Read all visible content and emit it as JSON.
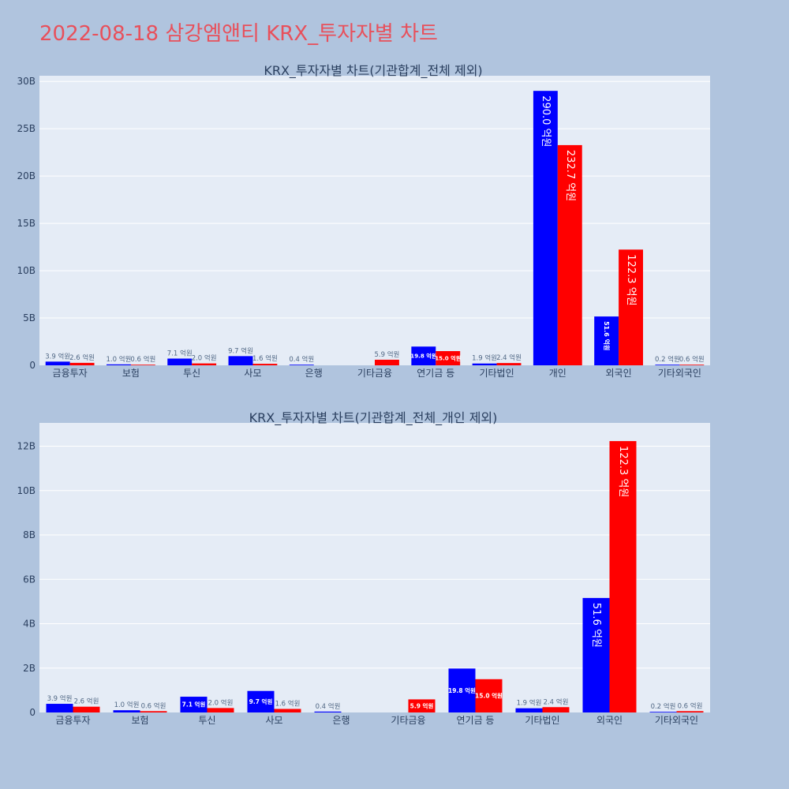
{
  "page": {
    "title": "2022-08-18 삼강엠앤티 KRX_투자자별 차트",
    "title_color": "#e8505b",
    "background": "#b0c4de",
    "plot_background": "#e5ecf6"
  },
  "chart_data": [
    {
      "type": "bar",
      "title": "KRX_투자자별 차트(기관합계_전체 제외)",
      "categories": [
        "금융투자",
        "보험",
        "투신",
        "사모",
        "은행",
        "기타금융",
        "연기금 등",
        "기타법인",
        "개인",
        "외국인",
        "기타외국인"
      ],
      "ylim": [
        0,
        30.6
      ],
      "yticks": [
        0,
        5,
        10,
        15,
        20,
        25,
        30
      ],
      "ytick_labels": [
        "0",
        "5B",
        "10B",
        "15B",
        "20B",
        "25B",
        "30B"
      ],
      "grid": true,
      "series": [
        {
          "color": "#0000ff",
          "values": [
            0.39,
            0.1,
            0.71,
            0.97,
            0.04,
            null,
            1.98,
            0.19,
            29.0,
            5.16,
            0.02
          ],
          "labels": [
            "3.9 억원",
            "1.0 억원",
            "7.1 억원",
            "9.7 억원",
            "0.4 억원",
            "",
            "19.8 억원",
            "1.9 억원",
            "290.0 억원",
            "51.6 억원",
            "0.2 억원"
          ]
        },
        {
          "color": "#ff0000",
          "values": [
            0.26,
            0.06,
            0.2,
            0.16,
            null,
            0.59,
            1.5,
            0.24,
            23.27,
            12.23,
            0.06
          ],
          "labels": [
            "2.6 억원",
            "0.6 억원",
            "2.0 억원",
            "1.6 억원",
            "",
            "5.9 억원",
            "15.0 억원",
            "2.4 억원",
            "232.7 억원",
            "122.3 억원",
            "0.6 억원"
          ]
        }
      ]
    },
    {
      "type": "bar",
      "title": "KRX_투자자별 차트(기관합계_전체_개인 제외)",
      "categories": [
        "금융투자",
        "보험",
        "투신",
        "사모",
        "은행",
        "기타금융",
        "연기금 등",
        "기타법인",
        "외국인",
        "기타외국인"
      ],
      "ylim": [
        0,
        13.05
      ],
      "yticks": [
        0,
        2,
        4,
        6,
        8,
        10,
        12
      ],
      "ytick_labels": [
        "0",
        "2B",
        "4B",
        "6B",
        "8B",
        "10B",
        "12B"
      ],
      "grid": true,
      "series": [
        {
          "color": "#0000ff",
          "values": [
            0.39,
            0.1,
            0.71,
            0.97,
            0.04,
            null,
            1.98,
            0.19,
            5.16,
            0.02
          ],
          "labels": [
            "3.9 억원",
            "1.0 억원",
            "7.1 억원",
            "9.7 억원",
            "0.4 억원",
            "",
            "19.8 억원",
            "1.9 억원",
            "51.6 억원",
            "0.2 억원"
          ]
        },
        {
          "color": "#ff0000",
          "values": [
            0.26,
            0.06,
            0.2,
            0.16,
            null,
            0.59,
            1.5,
            0.24,
            12.23,
            0.06
          ],
          "labels": [
            "2.6 억원",
            "0.6 억원",
            "2.0 억원",
            "1.6 억원",
            "",
            "5.9 억원",
            "15.0 억원",
            "2.4 억원",
            "122.3 억원",
            "0.6 억원"
          ]
        }
      ]
    }
  ]
}
